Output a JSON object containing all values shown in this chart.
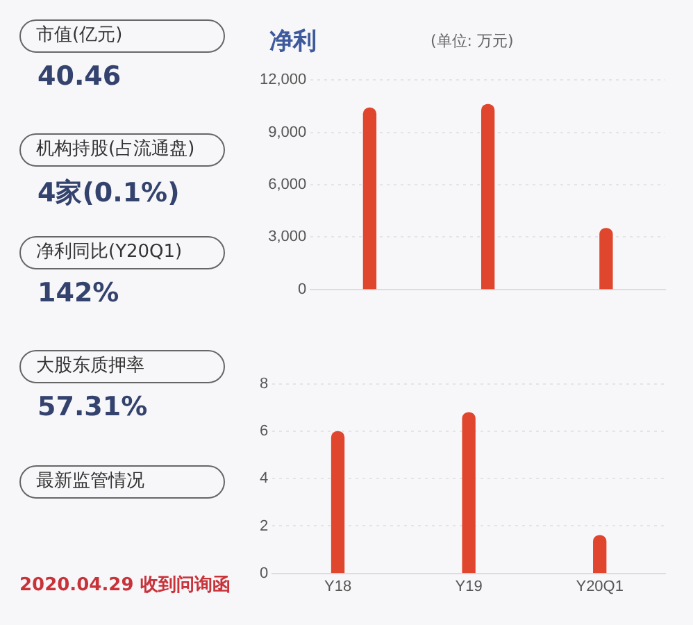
{
  "chart_data": [
    {
      "type": "other",
      "annotations": [
        "市值(亿元)",
        "40.46",
        "机构持股(占流通盘)",
        "4家(0.1%)",
        "净利同比(Y20Q1)",
        "142%",
        "大股东质押率",
        "57.31%",
        "最新监管情况",
        "2020.04.29 收到问询函"
      ]
    },
    {
      "type": "bar",
      "title": "净利",
      "subtitle": "(单位: 万元)",
      "categories": [
        null,
        null,
        null
      ],
      "values": [
        10400,
        10600,
        3500
      ],
      "color": "#e0452e",
      "ylim": [
        0,
        12000
      ],
      "yticks": [
        0,
        {
          "value": 3000,
          "label": "3,000"
        },
        {
          "value": 6000,
          "label": "6,000"
        },
        {
          "value": 9000,
          "label": "9,000"
        },
        {
          "value": 12000,
          "label": "12,000"
        }
      ],
      "grid": "y",
      "tick_labels": "y"
    },
    {
      "type": "bar",
      "categories": [
        "Y18",
        "Y19",
        "Y20Q1"
      ],
      "values": [
        6.0,
        6.8,
        1.6
      ],
      "color": "#e0452e",
      "ylim": [
        0,
        8
      ],
      "yticks": [
        0,
        2,
        4,
        6,
        8
      ],
      "grid": "y"
    }
  ]
}
